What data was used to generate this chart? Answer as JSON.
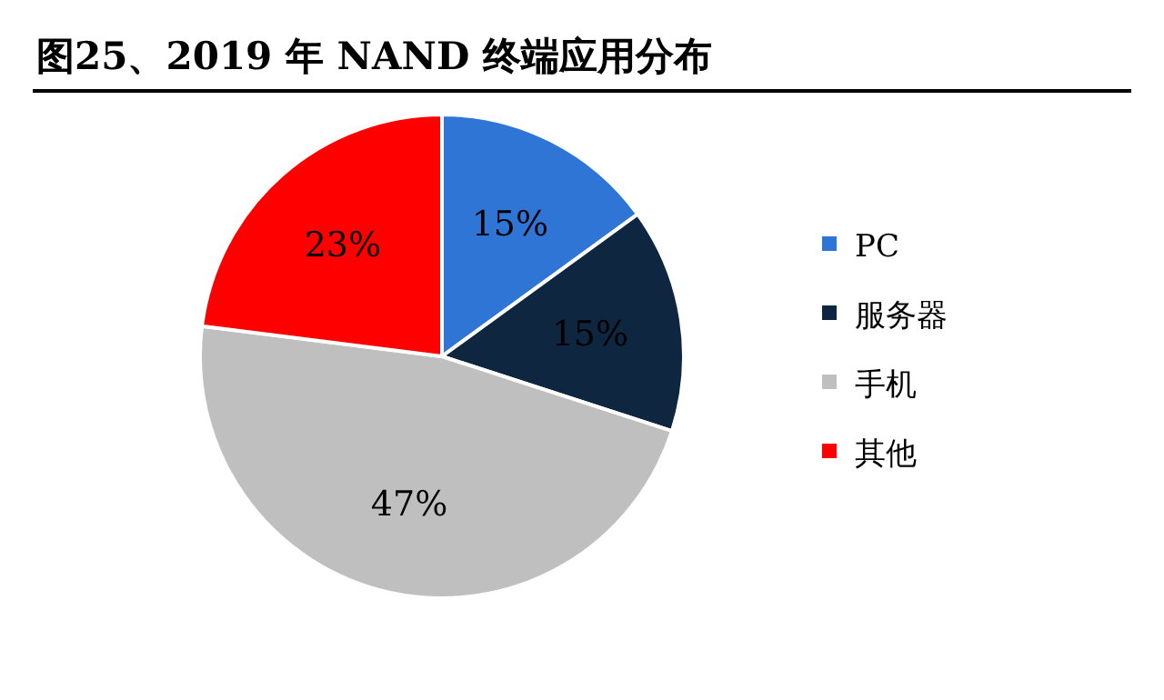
{
  "chart_data": {
    "type": "pie",
    "title": "图25、2019 年 NAND 终端应用分布",
    "categories": [
      "PC",
      "服务器",
      "手机",
      "其他"
    ],
    "values": [
      15,
      15,
      47,
      23
    ],
    "colors": [
      "#2f75d5",
      "#0f2640",
      "#bfbfbf",
      "#ff0000"
    ],
    "value_labels": [
      "15%",
      "15%",
      "47%",
      "23%"
    ],
    "legend": "right"
  }
}
